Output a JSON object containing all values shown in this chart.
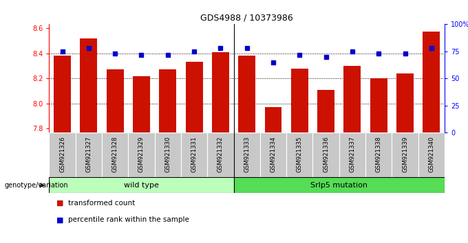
{
  "title": "GDS4988 / 10373986",
  "categories": [
    "GSM921326",
    "GSM921327",
    "GSM921328",
    "GSM921329",
    "GSM921330",
    "GSM921331",
    "GSM921332",
    "GSM921333",
    "GSM921334",
    "GSM921335",
    "GSM921336",
    "GSM921337",
    "GSM921338",
    "GSM921339",
    "GSM921340"
  ],
  "bar_values": [
    8.38,
    8.52,
    8.27,
    8.22,
    8.27,
    8.33,
    8.41,
    8.38,
    7.97,
    8.28,
    8.11,
    8.3,
    8.2,
    8.24,
    8.57
  ],
  "percentile_values": [
    75,
    78,
    73,
    72,
    72,
    75,
    78,
    78,
    65,
    72,
    70,
    75,
    73,
    73,
    78
  ],
  "bar_color": "#cc1100",
  "percentile_color": "#0000cc",
  "ylim_left": [
    7.77,
    8.63
  ],
  "ylim_right": [
    0,
    100
  ],
  "yticks_left": [
    7.8,
    8.0,
    8.2,
    8.4,
    8.6
  ],
  "yticks_right": [
    0,
    25,
    50,
    75,
    100
  ],
  "ytick_labels_right": [
    "0",
    "25",
    "50",
    "75",
    "100%"
  ],
  "group1_label": "wild type",
  "group2_label": "Srlp5 mutation",
  "group1_count": 7,
  "group2_count": 8,
  "legend1": "transformed count",
  "legend2": "percentile rank within the sample",
  "genotype_label": "genotype/variation",
  "tick_bg_color": "#c8c8c8",
  "group1_color": "#bbffbb",
  "group2_color": "#55dd55",
  "bar_bottom": 7.77,
  "bar_width": 0.65,
  "grid_lines": [
    8.0,
    8.2,
    8.4
  ]
}
